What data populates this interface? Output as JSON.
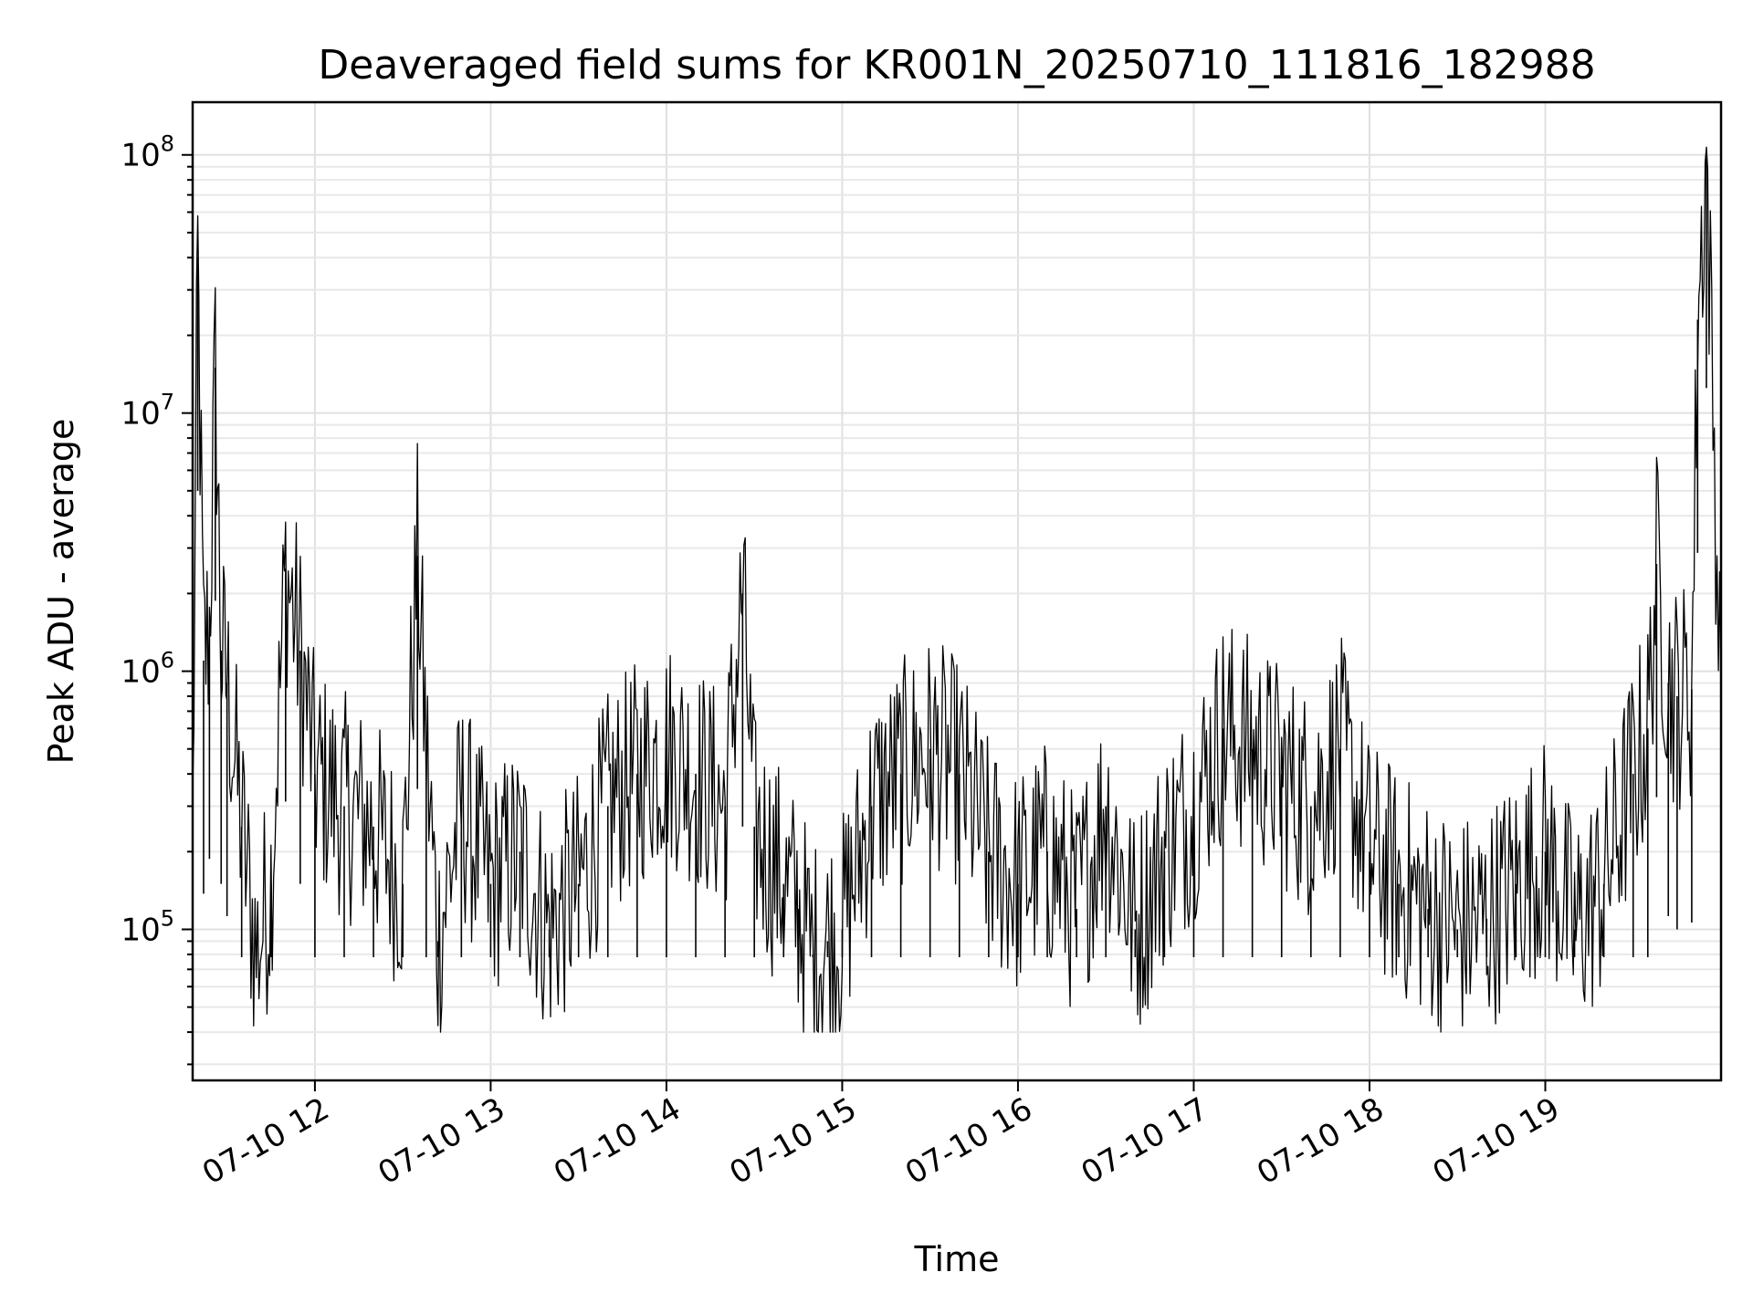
{
  "chart_data": {
    "type": "line",
    "title": "Deaveraged field sums for KR001N_20250710_111816_182988",
    "xlabel": "Time",
    "ylabel": "Peak ADU - average",
    "yscale": "log",
    "xlim": [
      "2025-07-10T11:18:16",
      "2025-07-10T20:00:00"
    ],
    "ylim": [
      26000,
      160000000
    ],
    "grid": true,
    "line_color": "#000000",
    "x_ticks": [
      {
        "value": "2025-07-10T12:00:00",
        "label": "07-10 12"
      },
      {
        "value": "2025-07-10T13:00:00",
        "label": "07-10 13"
      },
      {
        "value": "2025-07-10T14:00:00",
        "label": "07-10 14"
      },
      {
        "value": "2025-07-10T15:00:00",
        "label": "07-10 15"
      },
      {
        "value": "2025-07-10T16:00:00",
        "label": "07-10 16"
      },
      {
        "value": "2025-07-10T17:00:00",
        "label": "07-10 17"
      },
      {
        "value": "2025-07-10T18:00:00",
        "label": "07-10 18"
      },
      {
        "value": "2025-07-10T19:00:00",
        "label": "07-10 19"
      }
    ],
    "y_ticks": [
      {
        "value": 100000,
        "base": "10",
        "exp": "5"
      },
      {
        "value": 1000000,
        "base": "10",
        "exp": "6"
      },
      {
        "value": 10000000,
        "base": "10",
        "exp": "7"
      },
      {
        "value": 100000000,
        "base": "10",
        "exp": "8"
      }
    ],
    "series": [
      {
        "x": [
          "2025-07-10T11:18:16",
          "2025-07-10T11:20",
          "2025-07-10T11:22",
          "2025-07-10T11:24",
          "2025-07-10T11:26",
          "2025-07-10T11:28",
          "2025-07-10T11:30",
          "2025-07-10T11:35",
          "2025-07-10T11:40",
          "2025-07-10T11:45",
          "2025-07-10T11:50",
          "2025-07-10T11:55",
          "2025-07-10T12:00",
          "2025-07-10T12:10",
          "2025-07-10T12:20",
          "2025-07-10T12:30",
          "2025-07-10T12:35",
          "2025-07-10T12:38",
          "2025-07-10T12:42",
          "2025-07-10T12:50",
          "2025-07-10T13:00",
          "2025-07-10T13:10",
          "2025-07-10T13:20",
          "2025-07-10T13:30",
          "2025-07-10T13:40",
          "2025-07-10T13:50",
          "2025-07-10T14:00",
          "2025-07-10T14:10",
          "2025-07-10T14:20",
          "2025-07-10T14:26",
          "2025-07-10T14:30",
          "2025-07-10T14:40",
          "2025-07-10T14:45",
          "2025-07-10T14:50",
          "2025-07-10T14:55",
          "2025-07-10T15:00",
          "2025-07-10T15:10",
          "2025-07-10T15:20",
          "2025-07-10T15:30",
          "2025-07-10T15:40",
          "2025-07-10T15:50",
          "2025-07-10T16:00",
          "2025-07-10T16:10",
          "2025-07-10T16:20",
          "2025-07-10T16:30",
          "2025-07-10T16:40",
          "2025-07-10T16:50",
          "2025-07-10T17:00",
          "2025-07-10T17:10",
          "2025-07-10T17:20",
          "2025-07-10T17:30",
          "2025-07-10T17:40",
          "2025-07-10T17:50",
          "2025-07-10T18:00",
          "2025-07-10T18:10",
          "2025-07-10T18:20",
          "2025-07-10T18:30",
          "2025-07-10T18:40",
          "2025-07-10T18:50",
          "2025-07-10T19:00",
          "2025-07-10T19:10",
          "2025-07-10T19:20",
          "2025-07-10T19:30",
          "2025-07-10T19:35",
          "2025-07-10T19:38",
          "2025-07-10T19:42",
          "2025-07-10T19:45",
          "2025-07-10T19:50",
          "2025-07-10T19:52",
          "2025-07-10T19:55",
          "2025-07-10T20:00"
        ],
        "y": [
          250000,
          40000000,
          1100000,
          1500000,
          15000000,
          1200000,
          900000,
          250000,
          80000,
          150000,
          2500000,
          1200000,
          400000,
          300000,
          250000,
          150000,
          2800000,
          500000,
          90000,
          300000,
          150000,
          200000,
          100000,
          150000,
          300000,
          400000,
          500000,
          400000,
          300000,
          2000000,
          250000,
          150000,
          120000,
          80000,
          90000,
          100000,
          300000,
          400000,
          500000,
          400000,
          200000,
          150000,
          200000,
          120000,
          300000,
          100000,
          200000,
          300000,
          600000,
          500000,
          400000,
          300000,
          500000,
          200000,
          150000,
          120000,
          100000,
          110000,
          150000,
          200000,
          100000,
          150000,
          400000,
          600000,
          2600000,
          900000,
          800000,
          850000,
          23000000,
          100000000,
          700000
        ]
      }
    ]
  }
}
